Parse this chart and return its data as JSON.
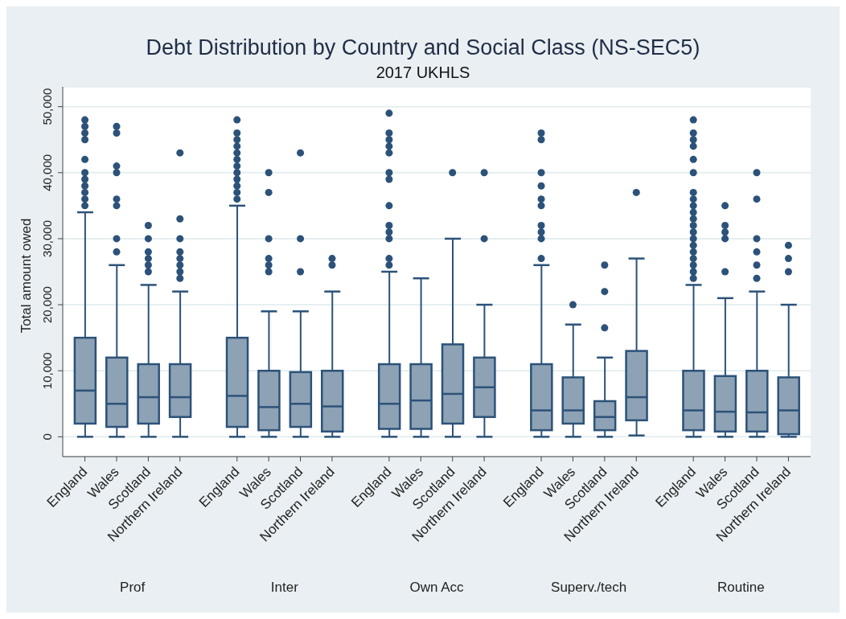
{
  "chart_data": {
    "type": "box",
    "title": "Debt Distribution by Country and Social Class (NS-SEC5)",
    "subtitle": "2017 UKHLS",
    "ylabel": "Total amount owed",
    "categories": [
      "England",
      "Wales",
      "Scotland",
      "Northern Ireland",
      "England",
      "Wales",
      "Scotland",
      "Northern Ireland",
      "England",
      "Wales",
      "Scotland",
      "Northern Ireland",
      "England",
      "Wales",
      "Scotland",
      "Northern Ireland",
      "England",
      "Wales",
      "Scotland",
      "Northern Ireland"
    ],
    "annotations": [
      "Prof",
      "Inter",
      "Own Acc",
      "Superv./tech",
      "Routine"
    ],
    "color": "#8ea2b5",
    "ylim": [
      -3000,
      53000
    ],
    "yticks": [
      {
        "value": 0,
        "label": "0"
      },
      {
        "value": 10000,
        "label": "10,000"
      },
      {
        "value": 20000,
        "label": "20,000"
      },
      {
        "value": 30000,
        "label": "30,000"
      },
      {
        "value": 40000,
        "label": "40,000"
      },
      {
        "value": 50000,
        "label": "50,000"
      }
    ],
    "grid": "y",
    "boxes": [
      {
        "low": 0,
        "q1": 2000,
        "median": 7000,
        "q3": 15000,
        "high": 34000,
        "outliers": [
          35000,
          36000,
          37000,
          38000,
          39000,
          40000,
          42000,
          45000,
          46000,
          47000,
          48000
        ]
      },
      {
        "low": 0,
        "q1": 1500,
        "median": 5000,
        "q3": 12000,
        "high": 26000,
        "outliers": [
          28000,
          30000,
          35000,
          36000,
          40000,
          41000,
          46000,
          47000
        ]
      },
      {
        "low": 0,
        "q1": 2000,
        "median": 6000,
        "q3": 11000,
        "high": 23000,
        "outliers": [
          25000,
          26000,
          27000,
          28000,
          30000,
          32000
        ]
      },
      {
        "low": 0,
        "q1": 3000,
        "median": 6000,
        "q3": 11000,
        "high": 22000,
        "outliers": [
          24000,
          25000,
          26000,
          27000,
          28000,
          30000,
          33000,
          43000
        ]
      },
      {
        "low": 0,
        "q1": 1500,
        "median": 6200,
        "q3": 15000,
        "high": 35000,
        "outliers": [
          36000,
          37000,
          38000,
          39000,
          40000,
          41000,
          42000,
          43000,
          44000,
          45000,
          46000,
          48000
        ]
      },
      {
        "low": 0,
        "q1": 1000,
        "median": 4500,
        "q3": 10000,
        "high": 19000,
        "outliers": [
          25000,
          26000,
          27000,
          30000,
          37000,
          40000
        ]
      },
      {
        "low": 0,
        "q1": 1500,
        "median": 5000,
        "q3": 9800,
        "high": 19000,
        "outliers": [
          25000,
          30000,
          43000
        ]
      },
      {
        "low": 0,
        "q1": 800,
        "median": 4600,
        "q3": 10000,
        "high": 22000,
        "outliers": [
          26000,
          27000
        ]
      },
      {
        "low": 0,
        "q1": 1200,
        "median": 5000,
        "q3": 11000,
        "high": 25000,
        "outliers": [
          26000,
          27000,
          30000,
          31000,
          32000,
          35000,
          39000,
          40000,
          43000,
          44000,
          45000,
          46000,
          49000
        ]
      },
      {
        "low": 0,
        "q1": 1200,
        "median": 5500,
        "q3": 11000,
        "high": 24000
      },
      {
        "low": 0,
        "q1": 2000,
        "median": 6500,
        "q3": 14000,
        "high": 30000,
        "outliers": [
          40000
        ]
      },
      {
        "low": 0,
        "q1": 3000,
        "median": 7500,
        "q3": 12000,
        "high": 20000,
        "outliers": [
          30000,
          40000
        ]
      },
      {
        "low": 0,
        "q1": 1000,
        "median": 4000,
        "q3": 11000,
        "high": 26000,
        "outliers": [
          27000,
          30000,
          31000,
          32000,
          35000,
          36000,
          38000,
          40000,
          45000,
          46000
        ]
      },
      {
        "low": 0,
        "q1": 2000,
        "median": 4000,
        "q3": 9000,
        "high": 17000,
        "outliers": [
          20000
        ]
      },
      {
        "low": 0,
        "q1": 1000,
        "median": 3000,
        "q3": 5400,
        "high": 12000,
        "outliers": [
          16500,
          22000,
          26000
        ]
      },
      {
        "low": 200,
        "q1": 2500,
        "median": 6000,
        "q3": 13000,
        "high": 27000,
        "outliers": [
          37000
        ]
      },
      {
        "low": 0,
        "q1": 1000,
        "median": 4000,
        "q3": 10000,
        "high": 23000,
        "outliers": [
          24000,
          25000,
          26000,
          27000,
          28000,
          29000,
          30000,
          31000,
          32000,
          33000,
          34000,
          35000,
          36000,
          37000,
          40000,
          42000,
          44000,
          45000,
          46000,
          48000
        ]
      },
      {
        "low": 0,
        "q1": 800,
        "median": 3800,
        "q3": 9200,
        "high": 21000,
        "outliers": [
          25000,
          30000,
          31000,
          32000,
          35000
        ]
      },
      {
        "low": 0,
        "q1": 800,
        "median": 3700,
        "q3": 10000,
        "high": 22000,
        "outliers": [
          24000,
          26000,
          28000,
          30000,
          36000,
          40000
        ]
      },
      {
        "low": 0,
        "q1": 400,
        "median": 4000,
        "q3": 9000,
        "high": 20000,
        "outliers": [
          25000,
          27000,
          29000
        ]
      }
    ]
  }
}
